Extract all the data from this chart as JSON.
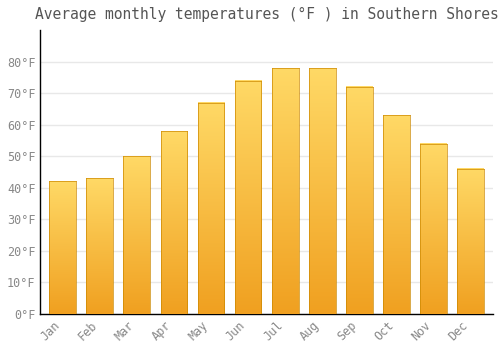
{
  "title": "Average monthly temperatures (°F ) in Southern Shores",
  "months": [
    "Jan",
    "Feb",
    "Mar",
    "Apr",
    "May",
    "Jun",
    "Jul",
    "Aug",
    "Sep",
    "Oct",
    "Nov",
    "Dec"
  ],
  "values": [
    42,
    43,
    50,
    58,
    67,
    74,
    78,
    78,
    72,
    63,
    54,
    46
  ],
  "bar_color_bottom": "#F5A623",
  "bar_color_top": "#FFD966",
  "background_color": "#FFFFFF",
  "grid_color": "#E8E8E8",
  "text_color": "#888888",
  "axis_color": "#000000",
  "ylim": [
    0,
    90
  ],
  "yticks": [
    0,
    10,
    20,
    30,
    40,
    50,
    60,
    70,
    80
  ],
  "ylabel_suffix": "°F",
  "title_fontsize": 10.5,
  "tick_fontsize": 8.5
}
